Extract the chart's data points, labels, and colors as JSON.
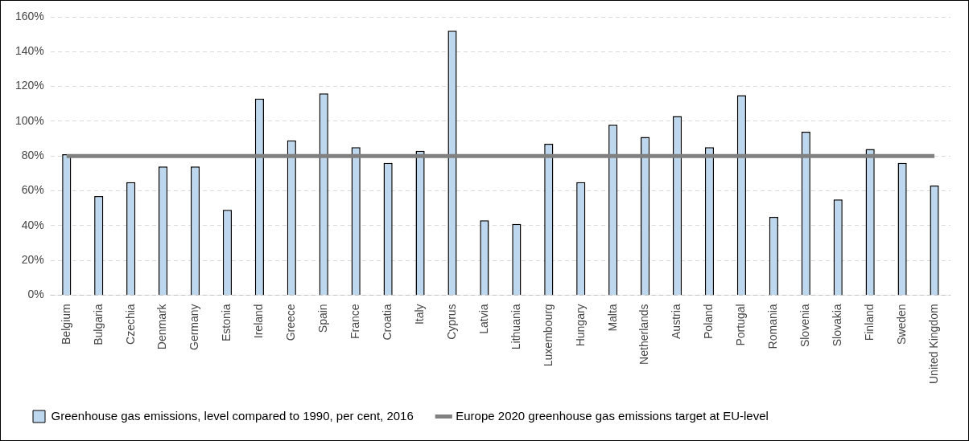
{
  "chart_data": {
    "type": "bar",
    "categories": [
      "Belgium",
      "Bulgaria",
      "Czechia",
      "Denmark",
      "Germany",
      "Estonia",
      "Ireland",
      "Greece",
      "Spain",
      "France",
      "Croatia",
      "Italy",
      "Cyprus",
      "Latvia",
      "Lithuania",
      "Luxembourg",
      "Hungary",
      "Malta",
      "Netherlands",
      "Austria",
      "Poland",
      "Portugal",
      "Romania",
      "Slovenia",
      "Slovakia",
      "Finland",
      "Sweden",
      "United Kingdom"
    ],
    "series": [
      {
        "name": "Greenhouse gas emissions, level compared to 1990, per cent, 2016",
        "color": "#bdd7ee",
        "values": [
          81,
          57,
          65,
          74,
          74,
          49,
          113,
          89,
          116,
          85,
          76,
          83,
          152,
          43,
          41,
          87,
          65,
          98,
          91,
          103,
          85,
          115,
          45,
          94,
          55,
          84,
          76,
          63
        ]
      },
      {
        "name": "Europe 2020 greenhouse gas emissions target at EU-level",
        "type": "line",
        "color": "#808080",
        "values": [
          80,
          80,
          80,
          80,
          80,
          80,
          80,
          80,
          80,
          80,
          80,
          80,
          80,
          80,
          80,
          80,
          80,
          80,
          80,
          80,
          80,
          80,
          80,
          80,
          80,
          80,
          80,
          80
        ]
      }
    ],
    "ylim": [
      0,
      160
    ],
    "yticks": [
      {
        "value": 0,
        "label": "0%"
      },
      {
        "value": 20,
        "label": "20%"
      },
      {
        "value": 40,
        "label": "40%"
      },
      {
        "value": 60,
        "label": "60%"
      },
      {
        "value": 80,
        "label": "80%"
      },
      {
        "value": 100,
        "label": "100%"
      },
      {
        "value": 120,
        "label": "120%"
      },
      {
        "value": 140,
        "label": "140%"
      },
      {
        "value": 160,
        "label": "160%"
      }
    ],
    "grid": "y",
    "legend": "bottom",
    "marker": "none"
  }
}
